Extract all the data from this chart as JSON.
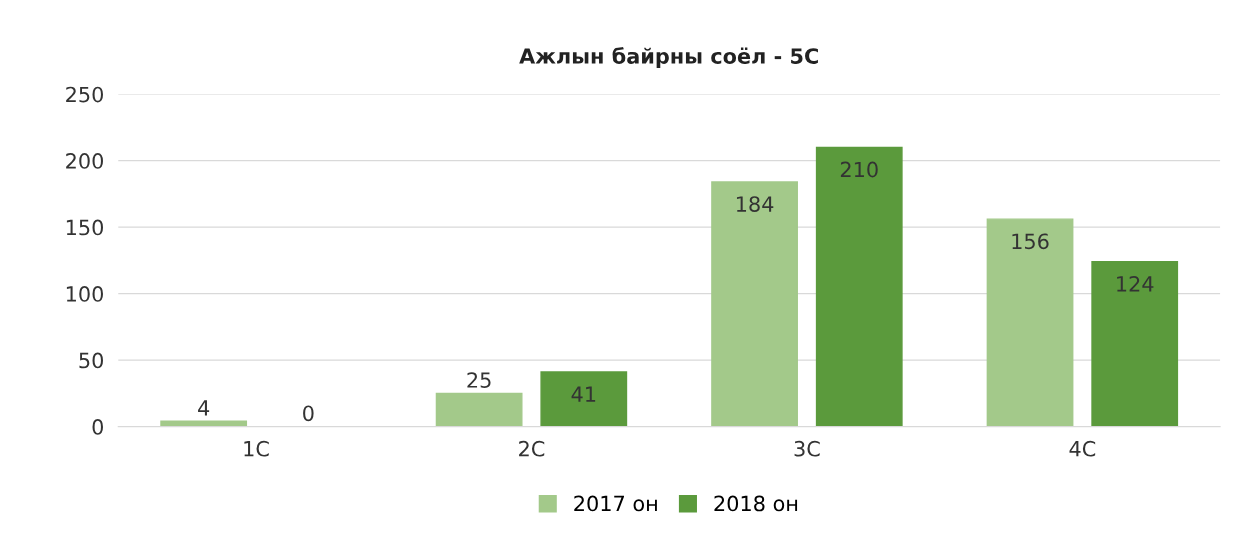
{
  "chart_data": {
    "type": "bar",
    "title": "Ажлын байрны соёл - 5С",
    "categories": [
      "1С",
      "2С",
      "3С",
      "4С"
    ],
    "series": [
      {
        "name": "2017 он",
        "color": "#a3c98a",
        "values": [
          4,
          25,
          184,
          156
        ]
      },
      {
        "name": "2018 он",
        "color": "#5b9a3c",
        "values": [
          0,
          41,
          210,
          124
        ]
      }
    ],
    "ylim": [
      0,
      250
    ],
    "yticks": [
      0,
      50,
      100,
      150,
      200,
      250
    ],
    "grid": "y",
    "legend": "bottom",
    "data_labels": true
  }
}
